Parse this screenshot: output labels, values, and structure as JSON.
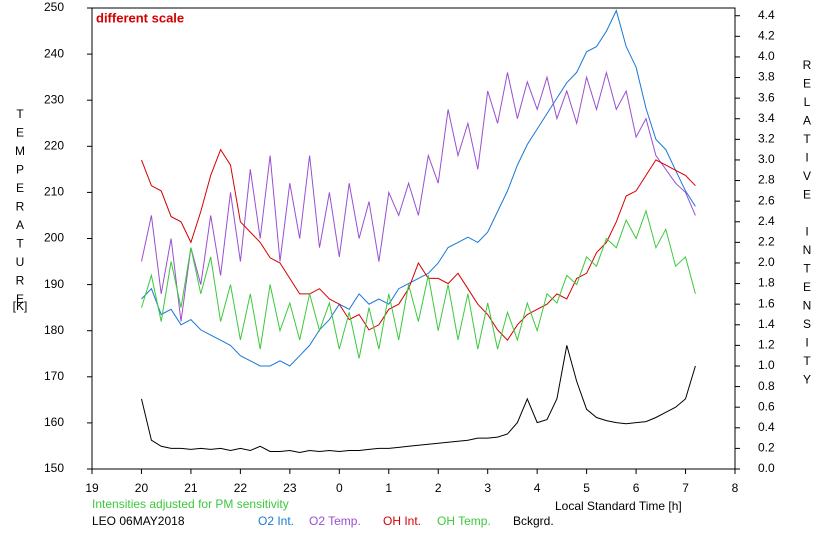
{
  "chart_data": {
    "type": "line",
    "annotation": "different scale",
    "note": "Intensities adjusted for PM sensitivity",
    "station": "LEO 06MAY2018",
    "xlabel": "Local Standard Time [h]",
    "ylabel": "TEMPERATURE",
    "ylabel_unit": "[K]",
    "y2label": "RELATIVE INTENSITY",
    "xlim": [
      19,
      32
    ],
    "xticks": [
      19,
      20,
      21,
      22,
      23,
      {
        "value": 24,
        "label": "0"
      },
      {
        "value": 25,
        "label": "1"
      },
      {
        "value": 26,
        "label": "2"
      },
      {
        "value": 27,
        "label": "3"
      },
      {
        "value": 28,
        "label": "4"
      },
      {
        "value": 29,
        "label": "5"
      },
      {
        "value": 30,
        "label": "6"
      },
      {
        "value": 31,
        "label": "7"
      },
      {
        "value": 32,
        "label": "8"
      }
    ],
    "ylim": [
      150,
      250
    ],
    "yticks": [
      150,
      160,
      170,
      180,
      190,
      200,
      210,
      220,
      230,
      240,
      250
    ],
    "y2lim": [
      0,
      4.475
    ],
    "y2ticks": [
      {
        "value": 0,
        "label": "0.0"
      },
      0.2,
      0.4,
      0.6,
      0.8,
      {
        "value": 1,
        "label": "1.0"
      },
      1.2,
      1.4,
      1.6,
      1.8,
      {
        "value": 2,
        "label": "2.0"
      },
      2.2,
      2.4,
      2.6,
      2.8,
      {
        "value": 3,
        "label": "3.0"
      },
      3.2,
      3.4,
      3.6,
      3.8,
      {
        "value": 4,
        "label": "4.0"
      },
      4.2,
      4.4
    ],
    "x": [
      20.0,
      20.2,
      20.4,
      20.6,
      20.8,
      21.0,
      21.2,
      21.4,
      21.6,
      21.8,
      22.0,
      22.2,
      22.4,
      22.6,
      22.8,
      23.0,
      23.2,
      23.4,
      23.6,
      23.8,
      24.0,
      24.2,
      24.4,
      24.6,
      24.8,
      25.0,
      25.2,
      25.4,
      25.6,
      25.8,
      26.0,
      26.2,
      26.4,
      26.6,
      26.8,
      27.0,
      27.2,
      27.4,
      27.6,
      27.8,
      28.0,
      28.2,
      28.4,
      28.6,
      28.8,
      29.0,
      29.2,
      29.4,
      29.6,
      29.8,
      30.0,
      30.2,
      30.4,
      30.6,
      30.8,
      31.0,
      31.2
    ],
    "series": [
      {
        "name": "O2 Int.",
        "color": "#1a78d6",
        "axis": "y2",
        "values": [
          1.65,
          1.75,
          1.5,
          1.55,
          1.4,
          1.45,
          1.35,
          1.3,
          1.25,
          1.2,
          1.1,
          1.05,
          1.0,
          1.0,
          1.05,
          1.0,
          1.1,
          1.2,
          1.35,
          1.45,
          1.6,
          1.55,
          1.7,
          1.6,
          1.65,
          1.6,
          1.75,
          1.8,
          1.85,
          1.9,
          2.0,
          2.15,
          2.2,
          2.25,
          2.2,
          2.3,
          2.5,
          2.7,
          2.95,
          3.15,
          3.3,
          3.45,
          3.6,
          3.75,
          3.85,
          4.05,
          4.1,
          4.25,
          4.45,
          4.1,
          3.9,
          3.5,
          3.2,
          3.1,
          2.9,
          2.7,
          2.55
        ]
      },
      {
        "name": "O2 Temp.",
        "color": "#9a4fd0",
        "values": [
          195,
          205,
          188,
          200,
          182,
          198,
          190,
          205,
          192,
          210,
          195,
          215,
          200,
          218,
          195,
          212,
          200,
          218,
          198,
          210,
          196,
          212,
          200,
          208,
          195,
          210,
          205,
          212,
          205,
          218,
          212,
          228,
          218,
          225,
          215,
          232,
          225,
          236,
          226,
          234,
          228,
          235,
          226,
          232,
          225,
          235,
          228,
          236,
          228,
          232,
          222,
          226,
          218,
          215,
          212,
          210,
          205
        ]
      },
      {
        "name": "OH Int.",
        "color": "#d40000",
        "axis": "y2",
        "values": [
          3.0,
          2.75,
          2.7,
          2.45,
          2.4,
          2.2,
          2.5,
          2.85,
          3.1,
          2.95,
          2.4,
          2.3,
          2.2,
          2.05,
          2.0,
          1.85,
          1.7,
          1.7,
          1.75,
          1.65,
          1.6,
          1.45,
          1.5,
          1.35,
          1.4,
          1.55,
          1.6,
          1.75,
          2.0,
          1.85,
          1.85,
          1.8,
          1.9,
          1.75,
          1.6,
          1.5,
          1.35,
          1.25,
          1.4,
          1.5,
          1.55,
          1.6,
          1.7,
          1.65,
          1.85,
          1.9,
          2.1,
          2.2,
          2.4,
          2.65,
          2.7,
          2.85,
          3.0,
          2.95,
          2.9,
          2.85,
          2.75
        ]
      },
      {
        "name": "OH Temp.",
        "color": "#3cc83c",
        "values": [
          185,
          192,
          182,
          195,
          185,
          198,
          188,
          196,
          182,
          190,
          178,
          188,
          176,
          190,
          180,
          186,
          178,
          188,
          180,
          186,
          176,
          184,
          174,
          185,
          176,
          188,
          178,
          190,
          182,
          192,
          180,
          190,
          178,
          188,
          176,
          186,
          176,
          184,
          178,
          186,
          180,
          188,
          186,
          192,
          190,
          196,
          194,
          200,
          198,
          204,
          200,
          206,
          198,
          202,
          194,
          196,
          188
        ]
      },
      {
        "name": "Bckgrd.",
        "color": "#000000",
        "axis": "y2",
        "values": [
          0.68,
          0.28,
          0.22,
          0.2,
          0.2,
          0.19,
          0.2,
          0.19,
          0.2,
          0.18,
          0.2,
          0.18,
          0.22,
          0.17,
          0.17,
          0.18,
          0.16,
          0.18,
          0.17,
          0.18,
          0.17,
          0.18,
          0.18,
          0.19,
          0.2,
          0.2,
          0.21,
          0.22,
          0.23,
          0.24,
          0.25,
          0.26,
          0.27,
          0.28,
          0.3,
          0.3,
          0.31,
          0.34,
          0.45,
          0.68,
          0.45,
          0.48,
          0.68,
          1.2,
          0.85,
          0.58,
          0.5,
          0.47,
          0.45,
          0.44,
          0.45,
          0.46,
          0.5,
          0.55,
          0.6,
          0.68,
          1.0
        ]
      }
    ]
  }
}
